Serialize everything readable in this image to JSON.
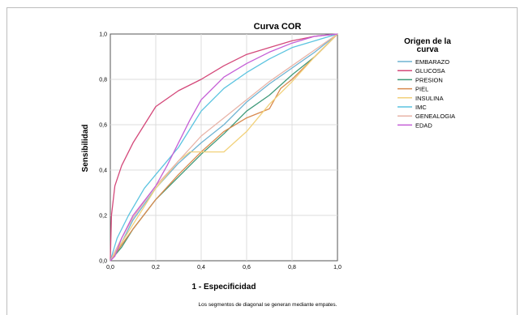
{
  "chart_data": {
    "type": "line",
    "title": "Curva COR",
    "xlabel": "1 - Especificidad",
    "ylabel": "Sensibilidad",
    "xlim": [
      0,
      1
    ],
    "ylim": [
      0,
      1
    ],
    "xticks": [
      "0,0",
      "0,2",
      "0,4",
      "0,6",
      "0,8",
      "1,0"
    ],
    "yticks": [
      "0,0",
      "0,2",
      "0,4",
      "0,6",
      "0,8",
      "1,0"
    ],
    "grid": true,
    "legend_title": "Origen de la curva",
    "legend_position": "right",
    "footnote": "Los segmentos de diagonal se generan mediante empates.",
    "series": [
      {
        "name": "EMBARAZO",
        "color": "#6fb3d2",
        "points": [
          [
            0,
            0
          ],
          [
            0.05,
            0.08
          ],
          [
            0.1,
            0.18
          ],
          [
            0.2,
            0.32
          ],
          [
            0.3,
            0.43
          ],
          [
            0.4,
            0.52
          ],
          [
            0.5,
            0.6
          ],
          [
            0.6,
            0.7
          ],
          [
            0.7,
            0.78
          ],
          [
            0.8,
            0.85
          ],
          [
            0.9,
            0.92
          ],
          [
            1,
            1
          ]
        ]
      },
      {
        "name": "GLUCOSA",
        "color": "#d4497a",
        "points": [
          [
            0,
            0
          ],
          [
            0.005,
            0.2
          ],
          [
            0.02,
            0.33
          ],
          [
            0.05,
            0.42
          ],
          [
            0.1,
            0.52
          ],
          [
            0.15,
            0.6
          ],
          [
            0.2,
            0.68
          ],
          [
            0.3,
            0.75
          ],
          [
            0.4,
            0.8
          ],
          [
            0.5,
            0.86
          ],
          [
            0.6,
            0.91
          ],
          [
            0.7,
            0.94
          ],
          [
            0.8,
            0.97
          ],
          [
            0.9,
            0.99
          ],
          [
            1,
            1
          ]
        ]
      },
      {
        "name": "PRESION",
        "color": "#3f9a7a",
        "points": [
          [
            0,
            0
          ],
          [
            0.05,
            0.06
          ],
          [
            0.1,
            0.14
          ],
          [
            0.2,
            0.27
          ],
          [
            0.3,
            0.37
          ],
          [
            0.4,
            0.47
          ],
          [
            0.5,
            0.56
          ],
          [
            0.6,
            0.66
          ],
          [
            0.7,
            0.73
          ],
          [
            0.8,
            0.82
          ],
          [
            0.9,
            0.9
          ],
          [
            1,
            1
          ]
        ]
      },
      {
        "name": "PIEL",
        "color": "#d98a4e",
        "points": [
          [
            0,
            0
          ],
          [
            0.05,
            0.07
          ],
          [
            0.1,
            0.14
          ],
          [
            0.2,
            0.27
          ],
          [
            0.3,
            0.38
          ],
          [
            0.4,
            0.48
          ],
          [
            0.5,
            0.57
          ],
          [
            0.6,
            0.63
          ],
          [
            0.7,
            0.67
          ],
          [
            0.75,
            0.76
          ],
          [
            0.8,
            0.8
          ],
          [
            0.9,
            0.9
          ],
          [
            1,
            1
          ]
        ]
      },
      {
        "name": "INSULINA",
        "color": "#f2d17a",
        "points": [
          [
            0,
            0
          ],
          [
            0.05,
            0.08
          ],
          [
            0.1,
            0.16
          ],
          [
            0.2,
            0.32
          ],
          [
            0.3,
            0.44
          ],
          [
            0.35,
            0.48
          ],
          [
            0.5,
            0.48
          ],
          [
            0.6,
            0.57
          ],
          [
            0.7,
            0.69
          ],
          [
            0.8,
            0.79
          ],
          [
            0.9,
            0.9
          ],
          [
            1,
            1
          ]
        ]
      },
      {
        "name": "IMC",
        "color": "#5cc4e0",
        "points": [
          [
            0,
            0
          ],
          [
            0.03,
            0.1
          ],
          [
            0.08,
            0.2
          ],
          [
            0.15,
            0.32
          ],
          [
            0.2,
            0.38
          ],
          [
            0.25,
            0.44
          ],
          [
            0.3,
            0.5
          ],
          [
            0.35,
            0.58
          ],
          [
            0.4,
            0.66
          ],
          [
            0.5,
            0.76
          ],
          [
            0.6,
            0.83
          ],
          [
            0.7,
            0.89
          ],
          [
            0.8,
            0.94
          ],
          [
            0.9,
            0.97
          ],
          [
            1,
            1
          ]
        ]
      },
      {
        "name": "GENEALOGIA",
        "color": "#e8b4a8",
        "points": [
          [
            0,
            0
          ],
          [
            0.05,
            0.1
          ],
          [
            0.1,
            0.19
          ],
          [
            0.2,
            0.33
          ],
          [
            0.3,
            0.44
          ],
          [
            0.4,
            0.55
          ],
          [
            0.5,
            0.63
          ],
          [
            0.6,
            0.71
          ],
          [
            0.7,
            0.79
          ],
          [
            0.8,
            0.86
          ],
          [
            0.9,
            0.93
          ],
          [
            1,
            1
          ]
        ]
      },
      {
        "name": "EDAD",
        "color": "#c55fd6",
        "points": [
          [
            0,
            0
          ],
          [
            0.02,
            0.02
          ],
          [
            0.05,
            0.1
          ],
          [
            0.1,
            0.2
          ],
          [
            0.2,
            0.33
          ],
          [
            0.25,
            0.42
          ],
          [
            0.3,
            0.52
          ],
          [
            0.35,
            0.62
          ],
          [
            0.4,
            0.71
          ],
          [
            0.5,
            0.81
          ],
          [
            0.6,
            0.87
          ],
          [
            0.7,
            0.92
          ],
          [
            0.8,
            0.96
          ],
          [
            0.9,
            0.99
          ],
          [
            1,
            1
          ]
        ]
      }
    ]
  }
}
